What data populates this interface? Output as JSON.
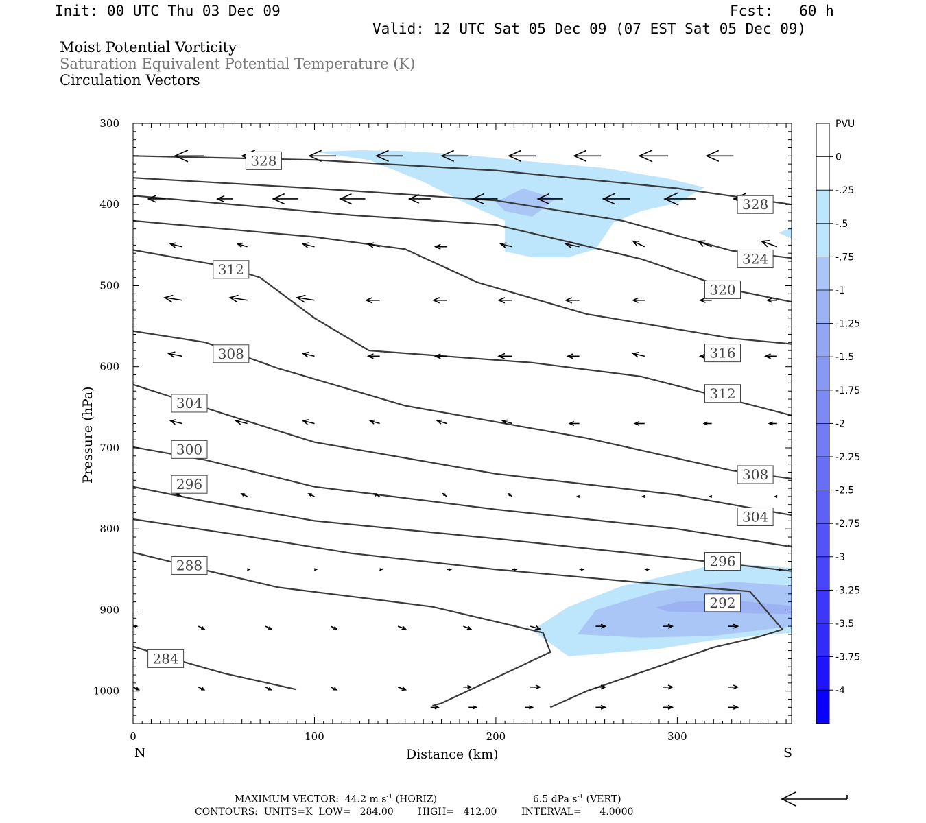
{
  "header": {
    "init": "Init: 00 UTC Thu 03 Dec 09",
    "fcst": "Fcst:   60 h",
    "valid": "Valid: 12 UTC Sat 05 Dec 09 (07 EST Sat 05 Dec 09)"
  },
  "legend": {
    "line1": "Moist Potential Vorticity",
    "line2": "Saturation Equivalent Potential Temperature (K)",
    "line3": "Circulation Vectors"
  },
  "axes": {
    "xlabel": "Distance (km)",
    "ylabel": "Pressure (hPa)",
    "left_end": "N",
    "right_end": "S"
  },
  "footer": {
    "max_vector": "MAXIMUM VECTOR:  44.2 m s",
    "max_vector_exp": "-1",
    "max_vector_unit": " (HORIZ)",
    "vert": "6.5 dPa s",
    "vert_exp": "-1",
    "vert_unit": " (VERT)",
    "contours": "CONTOURS:  UNITS=K  LOW=   284.00        HIGH=   412.00        INTERVAL=      4.0000"
  },
  "colors": {
    "contour": "#3a3a3a",
    "pv_light": "#bde5fb",
    "pv_mid": "#a9c6f7",
    "pv_dark": "#9db2f3"
  },
  "chart_data": {
    "type": "contour",
    "x_range": [
      0,
      363
    ],
    "y_range": [
      1040,
      300
    ],
    "y_log": false,
    "x_ticks": [
      0,
      100,
      200,
      300
    ],
    "y_ticks": [
      300,
      400,
      500,
      600,
      700,
      800,
      900,
      1000
    ],
    "theta_e_contours": [
      {
        "level": 284,
        "points": [
          [
            0,
            945
          ],
          [
            25,
            962
          ],
          [
            50,
            978
          ],
          [
            90,
            998
          ]
        ],
        "labels": [
          [
            18,
            960
          ]
        ]
      },
      {
        "level": 288,
        "points": [
          [
            0,
            829
          ],
          [
            40,
            851
          ],
          [
            80,
            872
          ],
          [
            130,
            886
          ],
          [
            165,
            896
          ],
          [
            226,
            928
          ],
          [
            230,
            952
          ],
          [
            170,
            1015
          ],
          [
            165,
            1018
          ]
        ],
        "labels": [
          [
            31,
            845
          ]
        ]
      },
      {
        "level": 292,
        "points": [
          [
            0,
            788
          ],
          [
            60,
            808
          ],
          [
            120,
            830
          ],
          [
            200,
            850
          ],
          [
            280,
            866
          ],
          [
            340,
            877
          ],
          [
            358,
            924
          ],
          [
            345,
            933
          ],
          [
            320,
            946
          ],
          [
            250,
            1000
          ],
          [
            230,
            1020
          ]
        ],
        "labels": [
          [
            325,
            891
          ]
        ]
      },
      {
        "level": 296,
        "points": [
          [
            0,
            748
          ],
          [
            40,
            766
          ],
          [
            100,
            790
          ],
          [
            200,
            812
          ],
          [
            300,
            836
          ],
          [
            363,
            852
          ]
        ],
        "labels": [
          [
            31,
            745
          ],
          [
            325,
            840
          ]
        ]
      },
      {
        "level": 300,
        "points": [
          [
            0,
            699
          ],
          [
            40,
            715
          ],
          [
            100,
            748
          ],
          [
            200,
            776
          ],
          [
            300,
            800
          ],
          [
            363,
            822
          ]
        ],
        "labels": [
          [
            31,
            702
          ]
        ]
      },
      {
        "level": 304,
        "points": [
          [
            0,
            622
          ],
          [
            50,
            658
          ],
          [
            100,
            693
          ],
          [
            200,
            732
          ],
          [
            300,
            758
          ],
          [
            363,
            783
          ]
        ],
        "labels": [
          [
            31,
            645
          ],
          [
            343,
            785
          ]
        ]
      },
      {
        "level": 308,
        "points": [
          [
            0,
            556
          ],
          [
            40,
            570
          ],
          [
            80,
            602
          ],
          [
            150,
            648
          ],
          [
            250,
            688
          ],
          [
            330,
            728
          ],
          [
            363,
            738
          ]
        ],
        "labels": [
          [
            54,
            584
          ],
          [
            343,
            733
          ]
        ]
      },
      {
        "level": 312,
        "points": [
          [
            0,
            456
          ],
          [
            50,
            476
          ],
          [
            70,
            490
          ],
          [
            100,
            540
          ],
          [
            130,
            580
          ],
          [
            220,
            595
          ],
          [
            280,
            612
          ],
          [
            363,
            660
          ]
        ],
        "labels": [
          [
            54,
            480
          ],
          [
            325,
            633
          ]
        ]
      },
      {
        "level": 316,
        "points": [
          [
            0,
            420
          ],
          [
            100,
            440
          ],
          [
            150,
            455
          ],
          [
            190,
            496
          ],
          [
            250,
            535
          ],
          [
            330,
            565
          ],
          [
            363,
            572
          ]
        ],
        "labels": [
          [
            325,
            583
          ]
        ]
      },
      {
        "level": 320,
        "points": [
          [
            0,
            389
          ],
          [
            120,
            413
          ],
          [
            200,
            425
          ],
          [
            280,
            467
          ],
          [
            330,
            505
          ],
          [
            363,
            520
          ]
        ],
        "labels": [
          [
            325,
            505
          ]
        ]
      },
      {
        "level": 324,
        "points": [
          [
            0,
            367
          ],
          [
            100,
            380
          ],
          [
            200,
            395
          ],
          [
            270,
            420
          ],
          [
            330,
            457
          ],
          [
            363,
            466
          ]
        ],
        "labels": [
          [
            343,
            467
          ]
        ]
      },
      {
        "level": 328,
        "points": [
          [
            0,
            340
          ],
          [
            100,
            345
          ],
          [
            200,
            358
          ],
          [
            300,
            380
          ],
          [
            363,
            400
          ]
        ],
        "labels": [
          [
            72,
            346
          ],
          [
            343,
            400
          ]
        ]
      }
    ],
    "pv_regions": [
      {
        "level": "-0.25",
        "color": "pv_light",
        "points": [
          [
            100,
            335
          ],
          [
            125,
            333
          ],
          [
            150,
            334
          ],
          [
            180,
            338
          ],
          [
            215,
            346
          ],
          [
            260,
            355
          ],
          [
            295,
            368
          ],
          [
            315,
            379
          ],
          [
            300,
            398
          ],
          [
            280,
            408
          ],
          [
            265,
            422
          ],
          [
            255,
            455
          ],
          [
            240,
            465
          ],
          [
            220,
            465
          ],
          [
            205,
            458
          ],
          [
            205,
            420
          ],
          [
            185,
            400
          ],
          [
            160,
            372
          ],
          [
            130,
            345
          ]
        ]
      },
      {
        "level": "-0.5",
        "color": "pv_mid",
        "points": [
          [
            200,
            397
          ],
          [
            215,
            380
          ],
          [
            233,
            393
          ],
          [
            220,
            415
          ],
          [
            205,
            408
          ]
        ]
      },
      {
        "level": "-0.25",
        "color": "pv_light",
        "points": [
          [
            220,
            925
          ],
          [
            240,
            896
          ],
          [
            270,
            870
          ],
          [
            325,
            842
          ],
          [
            363,
            848
          ],
          [
            363,
            928
          ],
          [
            320,
            937
          ],
          [
            290,
            948
          ],
          [
            240,
            957
          ]
        ]
      },
      {
        "level": "-0.5",
        "color": "pv_mid",
        "points": [
          [
            245,
            930
          ],
          [
            255,
            900
          ],
          [
            290,
            876
          ],
          [
            330,
            865
          ],
          [
            363,
            870
          ],
          [
            363,
            920
          ],
          [
            320,
            932
          ],
          [
            280,
            934
          ]
        ]
      },
      {
        "level": "-0.75",
        "color": "pv_dark",
        "points": [
          [
            288,
            897
          ],
          [
            300,
            890
          ],
          [
            330,
            888
          ],
          [
            363,
            895
          ],
          [
            363,
            905
          ],
          [
            320,
            903
          ],
          [
            295,
            902
          ]
        ]
      },
      {
        "level": "-0.25",
        "color": "pv_light",
        "points": [
          [
            356,
            435
          ],
          [
            363,
            428
          ],
          [
            363,
            442
          ]
        ]
      }
    ],
    "vectors": [
      {
        "p": 340,
        "x": [
          3,
          39,
          76,
          112,
          149,
          185,
          222,
          258,
          295,
          331
        ],
        "u": [
          -16,
          -15,
          -15,
          -14,
          -14,
          -14,
          -14,
          -14,
          -15,
          -14
        ],
        "w": [
          0,
          0,
          0,
          0,
          0,
          0,
          0,
          0,
          0,
          0
        ]
      },
      {
        "p": 393,
        "x": [
          18,
          55,
          91,
          128,
          164,
          201,
          237,
          274,
          310,
          346
        ],
        "u": [
          -9,
          -8,
          -13,
          -13,
          -11,
          -13,
          -13,
          -14,
          -16,
          -14
        ],
        "w": [
          0,
          0,
          0,
          0,
          0,
          0,
          0,
          0,
          0,
          0
        ]
      },
      {
        "p": 452,
        "x": [
          27,
          63,
          100,
          136,
          173,
          209,
          246,
          282,
          319,
          355
        ],
        "u": [
          -6,
          -5,
          -6,
          -6,
          -6,
          -6,
          -7,
          -6,
          -7,
          -8
        ],
        "w": [
          1,
          1,
          1,
          1,
          0,
          1,
          1,
          2,
          2,
          2
        ]
      },
      {
        "p": 518,
        "x": [
          27,
          63,
          100,
          136,
          173,
          209,
          246,
          282,
          319,
          355
        ],
        "u": [
          -9,
          -9,
          -9,
          -7,
          -7,
          -7,
          -7,
          -6,
          -6,
          -5
        ],
        "w": [
          1,
          1,
          1,
          0,
          0,
          0,
          0,
          0,
          0,
          0
        ]
      },
      {
        "p": 587,
        "x": [
          27,
          63,
          100,
          136,
          173,
          209,
          246,
          282,
          319,
          355
        ],
        "u": [
          -7,
          -6,
          -6,
          -6,
          -6,
          -7,
          -6,
          -6,
          -6,
          -6
        ],
        "w": [
          1,
          1,
          1,
          0,
          0,
          0,
          0,
          1,
          0,
          0
        ]
      },
      {
        "p": 670,
        "x": [
          27,
          63,
          100,
          136,
          173,
          209,
          246,
          282,
          319,
          355
        ],
        "u": [
          -6,
          -6,
          -6,
          -5,
          -5,
          -5,
          -5,
          -5,
          -4,
          -4
        ],
        "w": [
          1,
          1,
          1,
          1,
          1,
          1,
          0,
          0,
          0,
          0
        ]
      },
      {
        "p": 760,
        "x": [
          27,
          63,
          100,
          136,
          173,
          209,
          246,
          282,
          319,
          355
        ],
        "u": [
          -3,
          -3,
          -3,
          -3,
          -2,
          -2,
          -1,
          -1,
          -1,
          -1
        ],
        "w": [
          1,
          1,
          1,
          1,
          1,
          1,
          0,
          0,
          0,
          0
        ]
      },
      {
        "p": 850,
        "x": [
          27,
          63,
          100,
          136,
          173,
          209,
          246,
          282,
          319,
          355
        ],
        "u": [
          -2,
          1,
          1,
          1,
          2,
          2,
          2,
          2,
          2,
          2
        ],
        "w": [
          0,
          0,
          0,
          0,
          0,
          0,
          0,
          0,
          0,
          0
        ]
      },
      {
        "p": 920,
        "x": [
          0,
          36,
          73,
          109,
          146,
          182,
          219,
          255,
          292,
          328
        ],
        "u": [
          2,
          3,
          3,
          3,
          4,
          4,
          5,
          5,
          5,
          5
        ],
        "w": [
          0,
          -1,
          -1,
          -1,
          -1,
          -1,
          -1,
          0,
          0,
          0
        ]
      },
      {
        "p": 995,
        "x": [
          0,
          36,
          73,
          109,
          146,
          182,
          219,
          255,
          292,
          328
        ],
        "u": [
          3,
          3,
          3,
          3,
          4,
          4,
          5,
          5,
          5,
          5
        ],
        "w": [
          -1,
          -1,
          -1,
          -1,
          -1,
          0,
          0,
          0,
          0,
          0
        ]
      },
      {
        "p": 1020,
        "x": [
          164,
          185,
          216,
          255,
          292,
          328
        ],
        "u": [
          4,
          4,
          4,
          5,
          5,
          5
        ],
        "w": [
          0,
          0,
          0,
          0,
          0,
          0
        ]
      }
    ],
    "colorbar": {
      "title": "PVU",
      "labels": [
        "0",
        "-.25",
        "-.5",
        "-.75",
        "-1",
        "-1.25",
        "-1.5",
        "-1.75",
        "-2",
        "-2.25",
        "-2.5",
        "-2.75",
        "-3",
        "-3.25",
        "-3.5",
        "-3.75",
        "-4"
      ],
      "colors": [
        "#ffffff",
        "#ffffff",
        "#bde5fb",
        "#bde5fb",
        "#a9c6f7",
        "#9db2f3",
        "#93a5f3",
        "#8998f4",
        "#7e8af4",
        "#737cf5",
        "#686ff6",
        "#5e61f6",
        "#5353f7",
        "#4846f8",
        "#3d38f9",
        "#322bfa",
        "#1f14fc",
        "#0a00ff"
      ]
    }
  }
}
